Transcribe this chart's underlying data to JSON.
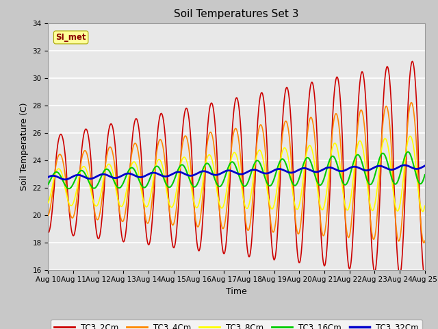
{
  "title": "Soil Temperatures Set 3",
  "xlabel": "Time",
  "ylabel": "Soil Temperature (C)",
  "ylim": [
    16,
    34
  ],
  "xlim": [
    0,
    15
  ],
  "x_tick_labels": [
    "Aug 10",
    "Aug 11",
    "Aug 12",
    "Aug 13",
    "Aug 14",
    "Aug 15",
    "Aug 16",
    "Aug 17",
    "Aug 18",
    "Aug 19",
    "Aug 20",
    "Aug 21",
    "Aug 22",
    "Aug 23",
    "Aug 24",
    "Aug 25"
  ],
  "series_names": [
    "TC3_2Cm",
    "TC3_4Cm",
    "TC3_8Cm",
    "TC3_16Cm",
    "TC3_32Cm"
  ],
  "series_colors": [
    "#cc0000",
    "#ff8800",
    "#ffff00",
    "#00cc00",
    "#0000cc"
  ],
  "series_linewidths": [
    1.2,
    1.2,
    1.2,
    1.5,
    2.0
  ],
  "annotation_text": "SI_met",
  "fig_bg_color": "#c8c8c8",
  "plot_bg_color": "#e8e8e8",
  "grid_color": "#ffffff",
  "title_fontsize": 11,
  "label_fontsize": 9,
  "tick_fontsize": 7.5
}
